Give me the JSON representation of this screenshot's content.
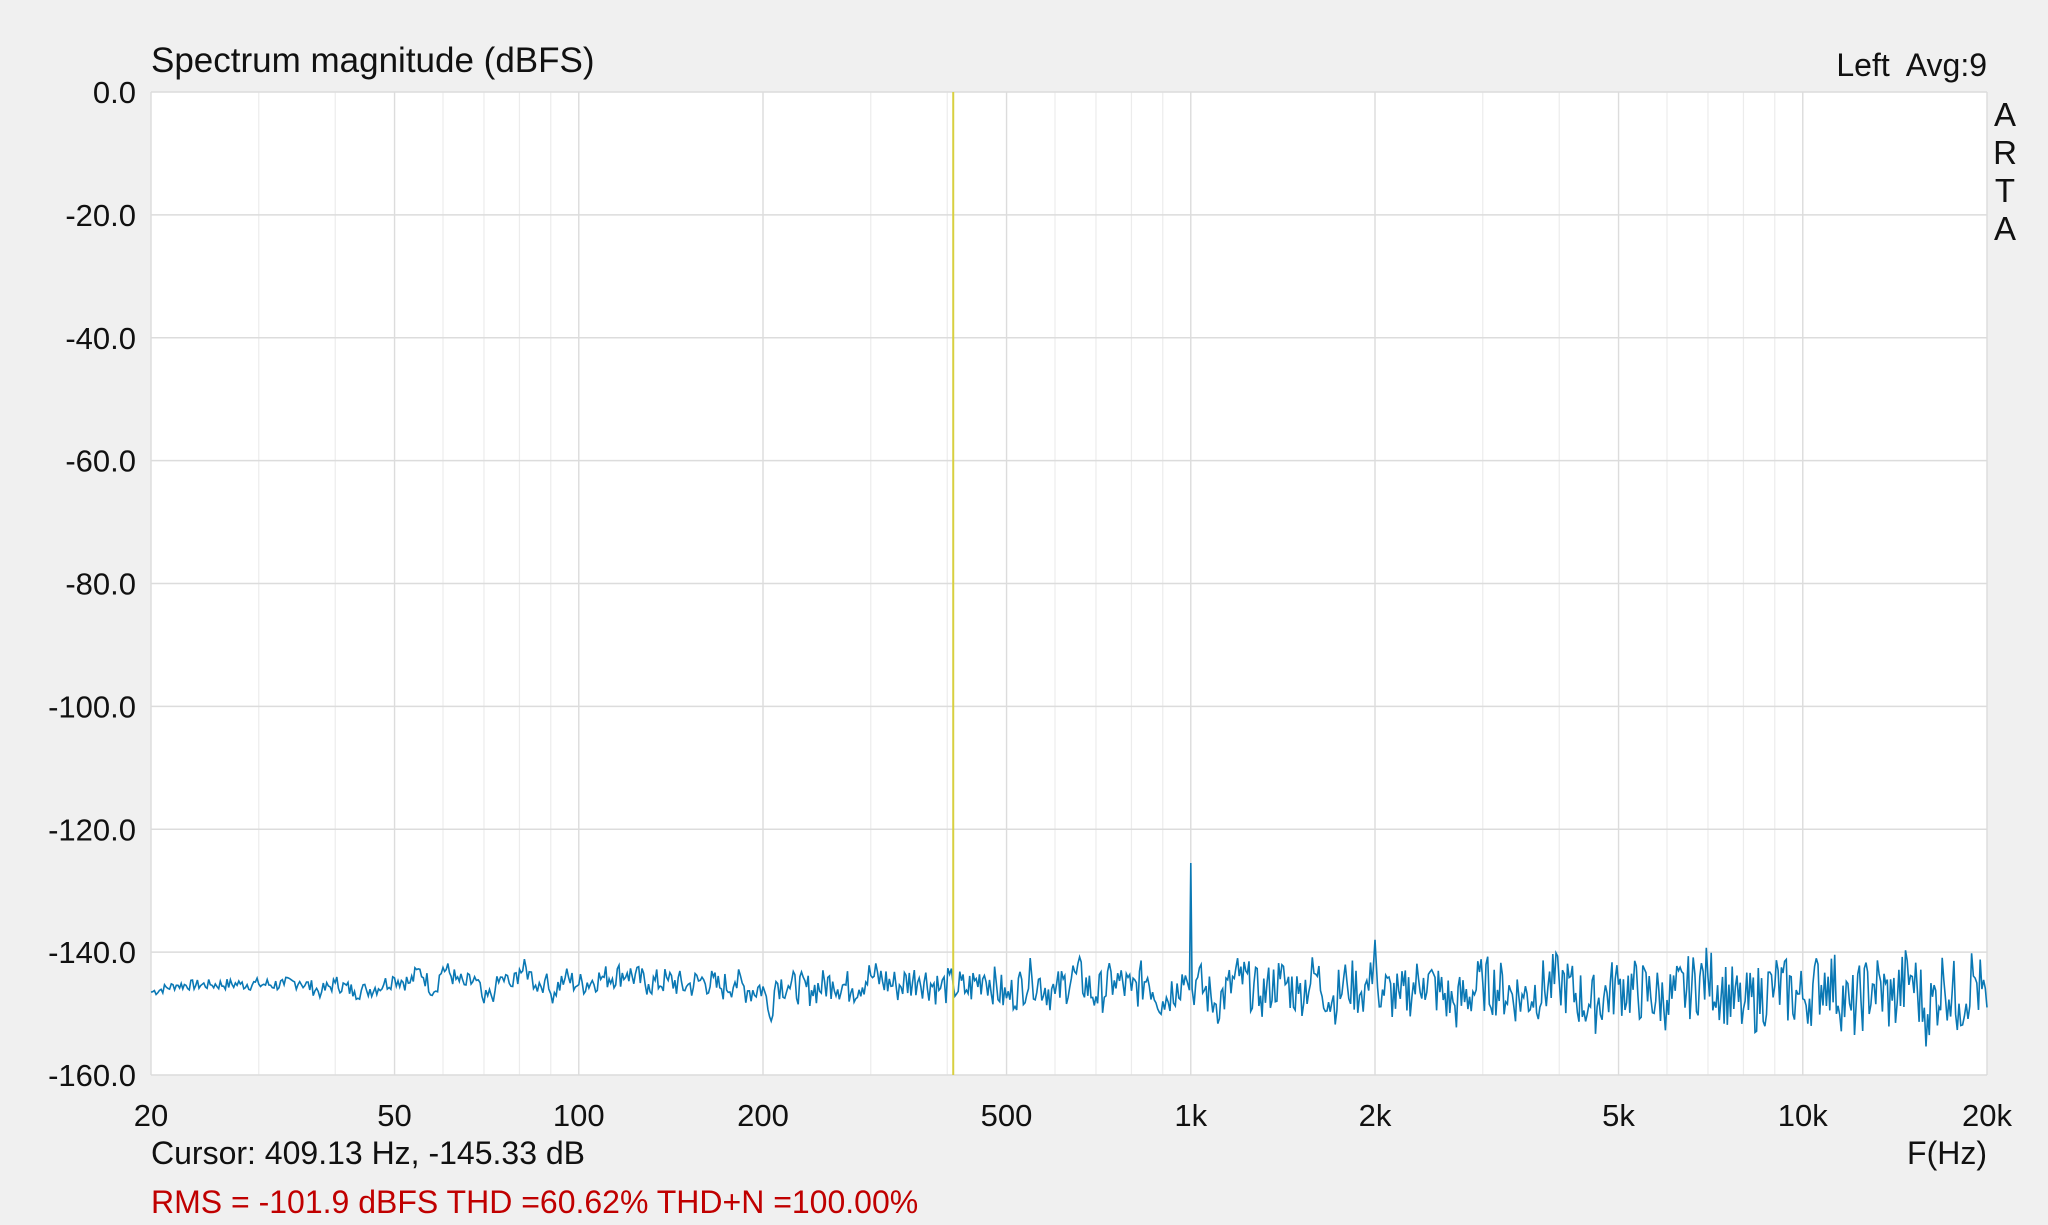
{
  "chart_data": {
    "type": "line",
    "title": "Spectrum magnitude (dBFS)",
    "channel_label": "Left  Avg:9",
    "watermark": "ARTA",
    "xlabel": "F(Hz)",
    "ylabel": "",
    "x_scale": "log",
    "xlim": [
      20,
      20000
    ],
    "ylim": [
      -160,
      0
    ],
    "grid": true,
    "x_ticks": [
      20,
      50,
      100,
      200,
      500,
      1000,
      2000,
      5000,
      10000,
      20000
    ],
    "x_tick_labels": [
      "20",
      "50",
      "100",
      "200",
      "500",
      "1k",
      "2k",
      "5k",
      "10k",
      "20k"
    ],
    "x_minor_ticks": [
      30,
      40,
      60,
      70,
      80,
      90,
      300,
      400,
      600,
      700,
      800,
      900,
      3000,
      4000,
      6000,
      7000,
      8000,
      9000
    ],
    "y_ticks": [
      0,
      -20,
      -40,
      -60,
      -80,
      -100,
      -120,
      -140,
      -160
    ],
    "y_tick_labels": [
      "0.0",
      "-20.0",
      "-40.0",
      "-60.0",
      "-80.0",
      "-100.0",
      "-120.0",
      "-140.0",
      "-160.0"
    ],
    "cursor": {
      "freq_hz": 409.13,
      "level_db": -145.33,
      "label": "Cursor: 409.13 Hz, -145.33 dB",
      "color": "#d8d040"
    },
    "status_line": "RMS = -101.9 dBFS THD =60.62% THD+N =100.00%",
    "series": [
      {
        "color": "#0a78b4",
        "x": [
          20,
          22,
          25,
          28,
          30,
          33,
          35,
          38,
          40,
          43,
          45,
          48,
          50,
          53,
          55,
          58,
          60,
          63,
          65,
          68,
          70,
          73,
          75,
          78,
          80,
          83,
          85,
          88,
          90,
          95,
          100,
          110,
          120,
          130,
          140,
          150,
          160,
          170,
          180,
          190,
          200,
          205,
          210,
          220,
          240,
          260,
          280,
          300,
          330,
          360,
          390,
          409.13,
          430,
          460,
          500,
          550,
          600,
          650,
          700,
          750,
          800,
          850,
          900,
          950,
          980,
          995,
          1000,
          1005,
          1020,
          1100,
          1200,
          1300,
          1400,
          1500,
          1600,
          1700,
          1800,
          1900,
          1980,
          2000,
          2020,
          2200,
          2400,
          2700,
          3000,
          3500,
          4000,
          4500,
          5000,
          6000,
          7000,
          8000,
          9000,
          10000,
          11000,
          12000,
          13000,
          14000,
          15000,
          16000,
          17000,
          18000,
          19000,
          20000
        ],
        "y": [
          -146.5,
          -145.4,
          -145.3,
          -145.2,
          -145.2,
          -145.3,
          -144.8,
          -146.5,
          -145.0,
          -146.4,
          -146.2,
          -145.3,
          -144.2,
          -145.0,
          -142.8,
          -146.5,
          -142.5,
          -144.4,
          -145.3,
          -144.6,
          -148.3,
          -146.2,
          -144.1,
          -145.6,
          -142.8,
          -143.2,
          -145.4,
          -144.6,
          -146.8,
          -144.2,
          -145.3,
          -144.1,
          -143.4,
          -145.2,
          -144.6,
          -145.6,
          -144.5,
          -145.8,
          -144.9,
          -146.3,
          -145.6,
          -150.5,
          -144.8,
          -145.5,
          -146.2,
          -144.8,
          -145.9,
          -143.8,
          -145.5,
          -144.2,
          -145.9,
          -145.33,
          -146.2,
          -143.8,
          -147.5,
          -144.1,
          -146.8,
          -143.5,
          -147.2,
          -144.6,
          -146.3,
          -144.2,
          -148.0,
          -145.1,
          -143.8,
          -146.2,
          -125.5,
          -146.0,
          -144.6,
          -148.5,
          -143.9,
          -147.1,
          -144.4,
          -146.8,
          -143.6,
          -148.2,
          -144.9,
          -146.5,
          -145.2,
          -138.0,
          -145.8,
          -147.6,
          -144.2,
          -148.7,
          -145.0,
          -147.4,
          -144.6,
          -148.9,
          -145.3,
          -147.8,
          -144.1,
          -149.2,
          -145.5,
          -147.6,
          -144.0,
          -149.5,
          -145.2,
          -147.9,
          -143.8,
          -150.1,
          -144.5,
          -148.4,
          -143.9,
          -149.0
        ]
      }
    ]
  }
}
